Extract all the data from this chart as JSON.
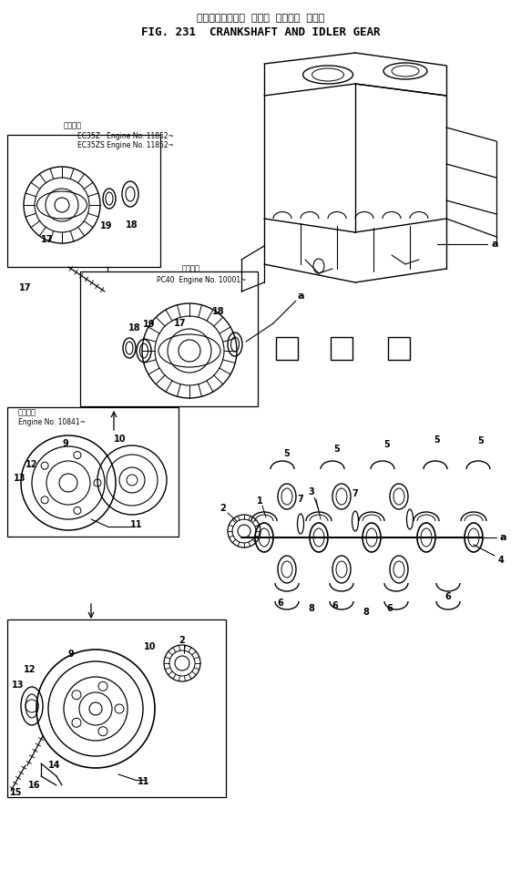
{
  "title_japanese": "クランクシャフト  および  アイドラ  ギヤー",
  "title_english": "FIG. 231  CRANKSHAFT AND IDLER GEAR",
  "bg_color": "#ffffff",
  "line_color": "#000000",
  "text_color": "#000000",
  "fig_width": 5.72,
  "fig_height": 9.55,
  "dpi": 100,
  "box1_label1": "適用番号",
  "box1_label2": "EC35Z   Engine No. 11852~",
  "box1_label3": "EC35ZS Engine No. 11852~",
  "box2_label1": "適用番号",
  "box2_label2": "PC40  Engine No. 10001~",
  "box3_label1": "適用番号",
  "box3_label2": "Engine No. 10841~"
}
